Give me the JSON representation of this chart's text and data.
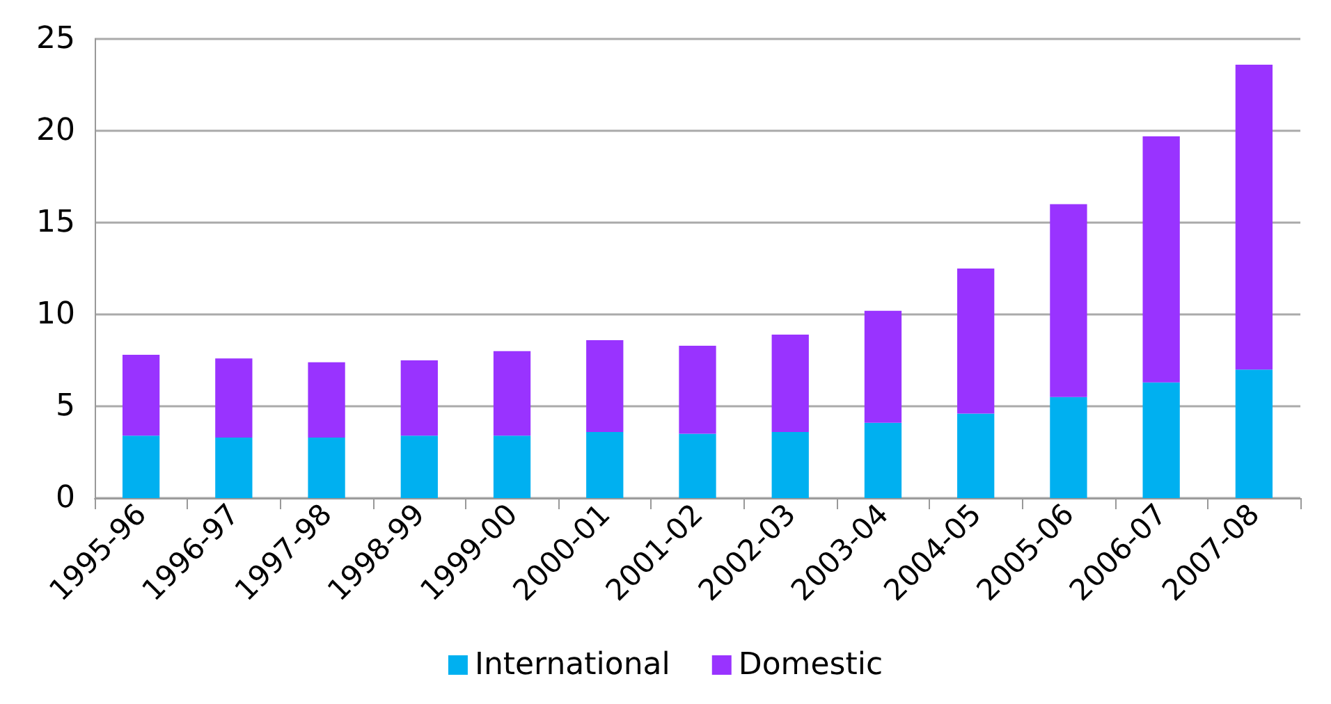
{
  "chart_data": {
    "type": "bar",
    "stacked": true,
    "categories": [
      "1995-96",
      "1996-97",
      "1997-98",
      "1998-99",
      "1999-00",
      "2000-01",
      "2001-02",
      "2002-03",
      "2003-04",
      "2004-05",
      "2005-06",
      "2006-07",
      "2007-08"
    ],
    "series": [
      {
        "name": "International",
        "color": "#00b0f0",
        "values": [
          3.4,
          3.3,
          3.3,
          3.4,
          3.4,
          3.6,
          3.5,
          3.6,
          4.1,
          4.6,
          5.5,
          6.3,
          7.0
        ]
      },
      {
        "name": "Domestic",
        "color": "#9933ff",
        "values": [
          4.4,
          4.3,
          4.1,
          4.1,
          4.6,
          5.0,
          4.8,
          5.3,
          6.1,
          7.9,
          10.5,
          13.4,
          16.6
        ]
      }
    ],
    "ylim": [
      0,
      25
    ],
    "yticks": [
      0,
      5,
      10,
      15,
      20,
      25
    ],
    "grid": "y",
    "legend": "bottom"
  }
}
